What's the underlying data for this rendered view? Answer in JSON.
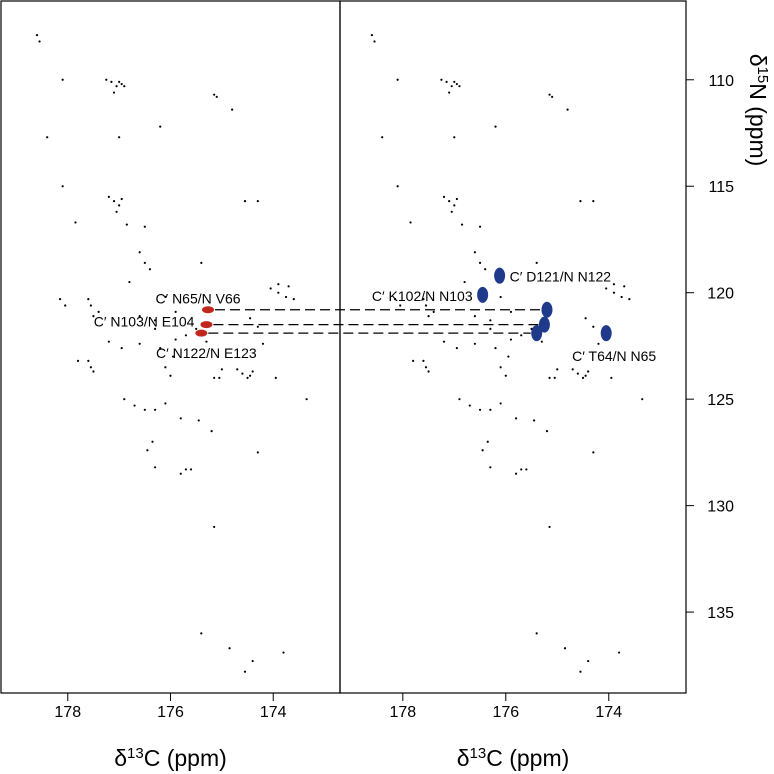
{
  "chart_data": [
    {
      "type": "scatter",
      "x_label": [
        "δ",
        "13",
        "C (ppm)"
      ],
      "xlim": [
        179.3,
        172.7
      ],
      "xticks": [
        178,
        176,
        174
      ],
      "ylim": [
        138.8,
        106.3
      ],
      "color": "#000000",
      "highlight_color": "#c0281e",
      "x": [
        178.6,
        178.55,
        178.1,
        177.25,
        177.15,
        177.05,
        177.0,
        176.95,
        177.1,
        176.9,
        175.15,
        175.1,
        174.8,
        178.4,
        177.0,
        176.2,
        178.1,
        177.2,
        177.1,
        177.0,
        176.95,
        177.05,
        174.55,
        174.3,
        177.85,
        176.85,
        176.5,
        176.6,
        176.5,
        176.4,
        175.4,
        176.8,
        178.15,
        178.05,
        177.6,
        177.55,
        177.5,
        177.4,
        176.1,
        174.05,
        173.9,
        173.75,
        173.7,
        173.9,
        173.6,
        175.9,
        176.3,
        176.6,
        176.3,
        175.5,
        174.45,
        174.3,
        177.2,
        176.95,
        176.6,
        176.2,
        175.9,
        175.7,
        175.3,
        174.2,
        177.8,
        177.6,
        177.55,
        177.5,
        175.95,
        176.1,
        176.0,
        175.15,
        175.05,
        175.0,
        174.7,
        174.6,
        174.5,
        174.45,
        174.4,
        173.95,
        173.35,
        176.9,
        176.7,
        176.5,
        176.3,
        176.1,
        175.8,
        175.45,
        175.2,
        176.35,
        176.45,
        176.3,
        175.8,
        175.7,
        175.6,
        174.3,
        175.15,
        175.4,
        174.85,
        173.8,
        174.4,
        174.55
      ],
      "y": [
        107.9,
        108.2,
        110,
        110,
        110.1,
        110.3,
        110.1,
        110.2,
        110.6,
        110.3,
        110.7,
        110.8,
        111.4,
        112.7,
        112.7,
        112.2,
        115,
        115.5,
        115.7,
        115.9,
        115.6,
        116.2,
        115.7,
        115.7,
        116.7,
        116.8,
        116.9,
        118.1,
        118.6,
        118.9,
        118.6,
        119.5,
        120.3,
        120.6,
        120.3,
        120.6,
        121.1,
        120.9,
        120.2,
        119.8,
        120,
        120.2,
        119.7,
        119.6,
        120.3,
        120.9,
        121.3,
        121.1,
        121.7,
        121.7,
        121.2,
        121.6,
        122.3,
        122.6,
        122.4,
        122.6,
        122.2,
        122,
        122.3,
        122.4,
        123.2,
        123.2,
        123.5,
        123.7,
        123,
        123.5,
        123.9,
        124,
        124,
        123.6,
        123.6,
        123.8,
        124,
        123.9,
        123.7,
        124,
        125,
        125,
        125.3,
        125.5,
        125.5,
        125.2,
        125.9,
        126,
        126.5,
        127,
        127.4,
        128.2,
        128.5,
        128.3,
        128.3,
        127.5,
        131,
        136,
        136.7,
        136.9,
        137.3,
        137.8
      ],
      "peaks": [
        {
          "x": 175.27,
          "y": 120.8,
          "label": "C′ N65/N V66"
        },
        {
          "x": 175.3,
          "y": 121.5,
          "label": "C′ N103/N E104"
        },
        {
          "x": 175.4,
          "y": 121.9,
          "label": "C′ N122/N E123"
        }
      ]
    },
    {
      "type": "scatter",
      "x_label": [
        "δ",
        "13",
        "C (ppm)"
      ],
      "y_label": [
        "δ",
        "15",
        "N (ppm)"
      ],
      "xlim": [
        179.22,
        172.5
      ],
      "xticks": [
        178,
        176,
        174
      ],
      "ylim": [
        138.8,
        106.3
      ],
      "yticks": [
        110,
        115,
        120,
        125,
        130,
        135
      ],
      "color": "#000000",
      "highlight_color": "#1f3a8a",
      "x": [
        178.6,
        178.55,
        178.1,
        177.25,
        177.15,
        177.05,
        177.0,
        176.95,
        177.1,
        176.9,
        175.15,
        175.1,
        174.8,
        178.4,
        177.0,
        176.2,
        178.1,
        177.2,
        177.1,
        177.0,
        176.95,
        177.05,
        174.55,
        174.3,
        177.85,
        176.85,
        176.5,
        176.6,
        176.5,
        176.4,
        175.4,
        176.8,
        178.15,
        178.05,
        177.6,
        177.55,
        177.5,
        177.4,
        176.1,
        174.05,
        173.9,
        173.75,
        173.7,
        173.9,
        173.6,
        175.9,
        176.3,
        176.6,
        176.3,
        175.5,
        174.45,
        174.3,
        177.2,
        176.95,
        176.6,
        176.2,
        175.9,
        175.7,
        175.3,
        174.2,
        177.8,
        177.6,
        177.55,
        177.5,
        175.95,
        176.1,
        176.0,
        175.15,
        175.05,
        175.0,
        174.7,
        174.6,
        174.5,
        174.45,
        174.4,
        173.95,
        173.35,
        176.9,
        176.7,
        176.5,
        176.3,
        176.1,
        175.8,
        175.45,
        175.2,
        176.35,
        176.45,
        176.3,
        175.8,
        175.7,
        175.6,
        174.3,
        175.15,
        175.4,
        174.85,
        173.8,
        174.4,
        174.55
      ],
      "y": [
        107.9,
        108.2,
        110,
        110,
        110.1,
        110.3,
        110.1,
        110.2,
        110.6,
        110.3,
        110.7,
        110.8,
        111.4,
        112.7,
        112.7,
        112.2,
        115,
        115.5,
        115.7,
        115.9,
        115.6,
        116.2,
        115.7,
        115.7,
        116.7,
        116.8,
        116.9,
        118.1,
        118.6,
        118.9,
        118.6,
        119.5,
        120.3,
        120.6,
        120.3,
        120.6,
        121.1,
        120.9,
        120.2,
        119.8,
        120,
        120.2,
        119.7,
        119.6,
        120.3,
        120.9,
        121.3,
        121.1,
        121.7,
        121.7,
        121.2,
        121.6,
        122.3,
        122.6,
        122.4,
        122.6,
        122.2,
        122,
        122.3,
        122.4,
        123.2,
        123.2,
        123.5,
        123.7,
        123,
        123.5,
        123.9,
        124,
        124,
        123.6,
        123.6,
        123.8,
        124,
        123.9,
        123.7,
        124,
        125,
        125,
        125.3,
        125.5,
        125.5,
        125.2,
        125.9,
        126,
        126.5,
        127,
        127.4,
        128.2,
        128.5,
        128.3,
        128.3,
        127.5,
        131,
        136,
        136.7,
        136.9,
        137.3,
        137.8
      ],
      "peaks": [
        {
          "x": 176.12,
          "y": 119.2,
          "label": "C′ D121/N N122"
        },
        {
          "x": 176.45,
          "y": 120.1,
          "label": "C′ K102/N N103"
        },
        {
          "x": 175.2,
          "y": 120.8
        },
        {
          "x": 175.25,
          "y": 121.5
        },
        {
          "x": 175.4,
          "y": 121.9
        },
        {
          "x": 174.05,
          "y": 121.9,
          "label": "C′ T64/N N65"
        }
      ]
    }
  ]
}
